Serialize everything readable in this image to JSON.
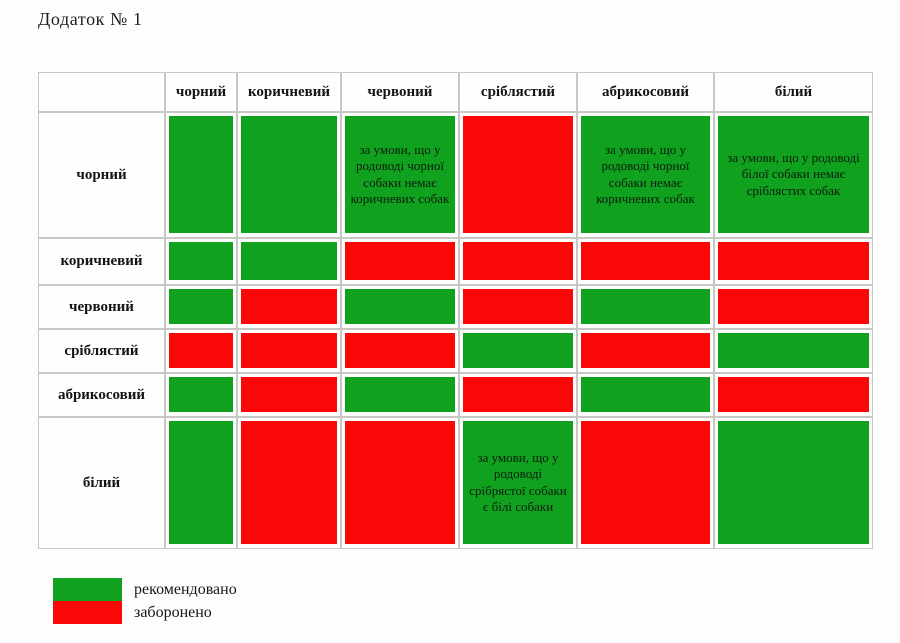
{
  "page": {
    "title": "Додаток № 1"
  },
  "colors": {
    "recommended_green": "#10A21F",
    "forbidden_red": "#FA0808",
    "grid_border": "#C7C7C4",
    "text": "#141414"
  },
  "chart_data": {
    "type": "table",
    "columns": [
      "чорний",
      "коричневий",
      "червоний",
      "сріблястий",
      "абрикосовий",
      "білий"
    ],
    "rows": [
      {
        "label": "чорний",
        "cells": [
          {
            "status": "recommended",
            "note": ""
          },
          {
            "status": "recommended",
            "note": ""
          },
          {
            "status": "recommended",
            "note": "за умови, що у родоводі чорної собаки немає коричневих собак"
          },
          {
            "status": "forbidden",
            "note": ""
          },
          {
            "status": "recommended",
            "note": "за умови, що у родоводі чорної собаки немає коричневих собак"
          },
          {
            "status": "recommended",
            "note": "за умови, що у родоводі білої собаки немає сріблястих собак"
          }
        ]
      },
      {
        "label": "коричневий",
        "cells": [
          {
            "status": "recommended",
            "note": ""
          },
          {
            "status": "recommended",
            "note": ""
          },
          {
            "status": "forbidden",
            "note": ""
          },
          {
            "status": "forbidden",
            "note": ""
          },
          {
            "status": "forbidden",
            "note": ""
          },
          {
            "status": "forbidden",
            "note": ""
          }
        ]
      },
      {
        "label": "червоний",
        "cells": [
          {
            "status": "recommended",
            "note": ""
          },
          {
            "status": "forbidden",
            "note": ""
          },
          {
            "status": "recommended",
            "note": ""
          },
          {
            "status": "forbidden",
            "note": ""
          },
          {
            "status": "recommended",
            "note": ""
          },
          {
            "status": "forbidden",
            "note": ""
          }
        ]
      },
      {
        "label": "сріблястий",
        "cells": [
          {
            "status": "forbidden",
            "note": ""
          },
          {
            "status": "forbidden",
            "note": ""
          },
          {
            "status": "forbidden",
            "note": ""
          },
          {
            "status": "recommended",
            "note": ""
          },
          {
            "status": "forbidden",
            "note": ""
          },
          {
            "status": "recommended",
            "note": ""
          }
        ]
      },
      {
        "label": "абрикосовий",
        "cells": [
          {
            "status": "recommended",
            "note": ""
          },
          {
            "status": "forbidden",
            "note": ""
          },
          {
            "status": "recommended",
            "note": ""
          },
          {
            "status": "forbidden",
            "note": ""
          },
          {
            "status": "recommended",
            "note": ""
          },
          {
            "status": "forbidden",
            "note": ""
          }
        ]
      },
      {
        "label": "білий",
        "cells": [
          {
            "status": "recommended",
            "note": ""
          },
          {
            "status": "forbidden",
            "note": ""
          },
          {
            "status": "forbidden",
            "note": ""
          },
          {
            "status": "recommended",
            "note": "за умови, що у родоводі срібрястої собаки є білі собаки"
          },
          {
            "status": "forbidden",
            "note": ""
          },
          {
            "status": "recommended",
            "note": ""
          }
        ]
      }
    ],
    "legend": [
      {
        "status": "recommended",
        "label": "рекомендовано"
      },
      {
        "status": "forbidden",
        "label": "заборонено"
      }
    ]
  }
}
